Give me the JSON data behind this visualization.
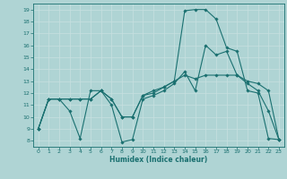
{
  "xlabel": "Humidex (Indice chaleur)",
  "xlim": [
    -0.5,
    23.5
  ],
  "ylim": [
    7.5,
    19.5
  ],
  "yticks": [
    8,
    9,
    10,
    11,
    12,
    13,
    14,
    15,
    16,
    17,
    18,
    19
  ],
  "xticks": [
    0,
    1,
    2,
    3,
    4,
    5,
    6,
    7,
    8,
    9,
    10,
    11,
    12,
    13,
    14,
    15,
    16,
    17,
    18,
    19,
    20,
    21,
    22,
    23
  ],
  "bg_color": "#afd4d4",
  "grid_color": "#d0e8e8",
  "line_color": "#1a7070",
  "line1_y": [
    9,
    11.5,
    11.5,
    10.5,
    8.2,
    12.2,
    12.2,
    11.0,
    7.9,
    8.1,
    11.5,
    11.8,
    12.2,
    12.8,
    13.8,
    12.2,
    16.0,
    15.2,
    15.5,
    13.5,
    12.8,
    12.2,
    10.5,
    8.1
  ],
  "line2_y": [
    9,
    11.5,
    11.5,
    11.5,
    11.5,
    11.5,
    12.2,
    11.5,
    10.0,
    10.0,
    11.8,
    12.0,
    12.5,
    13.0,
    18.9,
    19.0,
    19.0,
    18.2,
    15.8,
    15.5,
    12.2,
    12.0,
    8.2,
    8.1
  ],
  "line3_y": [
    9,
    11.5,
    11.5,
    11.5,
    11.5,
    11.5,
    12.2,
    11.5,
    10.0,
    10.0,
    11.8,
    12.2,
    12.5,
    13.0,
    13.5,
    13.2,
    13.5,
    13.5,
    13.5,
    13.5,
    13.0,
    12.8,
    12.2,
    8.1
  ]
}
